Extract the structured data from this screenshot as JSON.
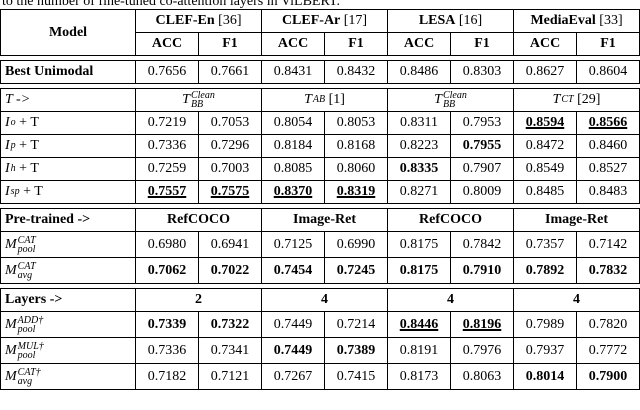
{
  "caption_fragment": "to the number of fine-tuned co-attention layers in ViLBERT.",
  "table": {
    "header": {
      "model": "Model",
      "datasets": [
        {
          "name": "CLEF-En",
          "ref": "[36]"
        },
        {
          "name": "CLEF-Ar",
          "ref": "[17]"
        },
        {
          "name": "LESA",
          "ref": "[16]"
        },
        {
          "name": "MediaEval",
          "ref": "[33]"
        }
      ],
      "metrics": [
        "ACC",
        "F1",
        "ACC",
        "F1",
        "ACC",
        "F1",
        "ACC",
        "F1"
      ]
    },
    "sections": [
      {
        "rows": [
          {
            "label": {
              "text": "Best Unimodal",
              "bold": true
            },
            "cells": [
              "0.7656",
              "0.7661",
              "0.8431",
              "0.8432",
              "0.8486",
              "0.8303",
              "0.8627",
              "0.8604"
            ]
          }
        ]
      },
      {
        "head": {
          "label": {
            "main": "T",
            "rest": " ->"
          },
          "groups": [
            {
              "main": "T",
              "sub": "BB",
              "sup": "Clean"
            },
            {
              "main": "T",
              "sub": "AB",
              "ref": "[1]"
            },
            {
              "main": "T",
              "sub": "BB",
              "sup": "Clean"
            },
            {
              "main": "T",
              "sub": "CT",
              "ref": "[29]"
            }
          ]
        },
        "rows": [
          {
            "label": {
              "main": "I",
              "sub": "o",
              "rest": " + T"
            },
            "cells": [
              "0.7219",
              "0.7053",
              "0.8054",
              "0.8053",
              "0.8311",
              "0.7953",
              {
                "text": "0.8594",
                "bold": true,
                "underline": true
              },
              {
                "text": "0.8566",
                "bold": true,
                "underline": true
              }
            ]
          },
          {
            "label": {
              "main": "I",
              "sub": "p",
              "rest": " + T"
            },
            "cells": [
              "0.7336",
              "0.7296",
              "0.8184",
              "0.8168",
              "0.8223",
              {
                "text": "0.7955",
                "bold": true
              },
              "0.8472",
              "0.8460"
            ]
          },
          {
            "label": {
              "main": "I",
              "sub": "h",
              "rest": " + T"
            },
            "cells": [
              "0.7259",
              "0.7003",
              "0.8085",
              "0.8060",
              {
                "text": "0.8335",
                "bold": true
              },
              "0.7907",
              "0.8549",
              "0.8527"
            ]
          },
          {
            "label": {
              "main": "I",
              "sub": "sp",
              "rest": " + T"
            },
            "cells": [
              {
                "text": "0.7557",
                "bold": true,
                "underline": true
              },
              {
                "text": "0.7575",
                "bold": true,
                "underline": true
              },
              {
                "text": "0.8370",
                "bold": true,
                "underline": true
              },
              {
                "text": "0.8319",
                "bold": true,
                "underline": true
              },
              "0.8271",
              "0.8009",
              "0.8485",
              "0.8483"
            ]
          }
        ]
      },
      {
        "head": {
          "label": {
            "text": "Pre-trained ->",
            "bold": true
          },
          "groups": [
            {
              "text": "RefCOCO",
              "bold": true
            },
            {
              "text": "Image-Ret",
              "bold": true
            },
            {
              "text": "RefCOCO",
              "bold": true
            },
            {
              "text": "Image-Ret",
              "bold": true
            }
          ]
        },
        "rows": [
          {
            "label": {
              "main": "M",
              "sub": "pool",
              "sup": "CAT"
            },
            "cells": [
              "0.6980",
              "0.6941",
              "0.7125",
              "0.6990",
              "0.8175",
              "0.7842",
              "0.7357",
              "0.7142"
            ]
          },
          {
            "label": {
              "main": "M",
              "sub": "avg",
              "sup": "CAT"
            },
            "cells": [
              {
                "text": "0.7062",
                "bold": true
              },
              {
                "text": "0.7022",
                "bold": true
              },
              {
                "text": "0.7454",
                "bold": true
              },
              {
                "text": "0.7245",
                "bold": true
              },
              {
                "text": "0.8175",
                "bold": true
              },
              {
                "text": "0.7910",
                "bold": true
              },
              {
                "text": "0.7892",
                "bold": true
              },
              {
                "text": "0.7832",
                "bold": true
              }
            ]
          }
        ]
      },
      {
        "head": {
          "label": {
            "text": "Layers ->",
            "bold": true
          },
          "groups": [
            {
              "text": "2",
              "bold": true
            },
            {
              "text": "4",
              "bold": true
            },
            {
              "text": "4",
              "bold": true
            },
            {
              "text": "4",
              "bold": true
            }
          ]
        },
        "rows": [
          {
            "label": {
              "main": "M",
              "sub": "pool",
              "sup": "ADD†"
            },
            "cells": [
              {
                "text": "0.7339",
                "bold": true
              },
              {
                "text": "0.7322",
                "bold": true
              },
              "0.7449",
              "0.7214",
              {
                "text": "0.8446",
                "bold": true,
                "underline": true
              },
              {
                "text": "0.8196",
                "bold": true,
                "underline": true
              },
              "0.7989",
              "0.7820"
            ]
          },
          {
            "label": {
              "main": "M",
              "sub": "pool",
              "sup": "MUL†"
            },
            "cells": [
              "0.7336",
              "0.7341",
              {
                "text": "0.7449",
                "bold": true
              },
              {
                "text": "0.7389",
                "bold": true
              },
              "0.8191",
              "0.7976",
              "0.7937",
              "0.7772"
            ]
          },
          {
            "label": {
              "main": "M",
              "sub": "avg",
              "sup": "CAT†"
            },
            "cells": [
              "0.7182",
              "0.7121",
              "0.7267",
              "0.7415",
              "0.8173",
              "0.8063",
              {
                "text": "0.8014",
                "bold": true
              },
              {
                "text": "0.7900",
                "bold": true
              }
            ]
          }
        ]
      }
    ]
  }
}
